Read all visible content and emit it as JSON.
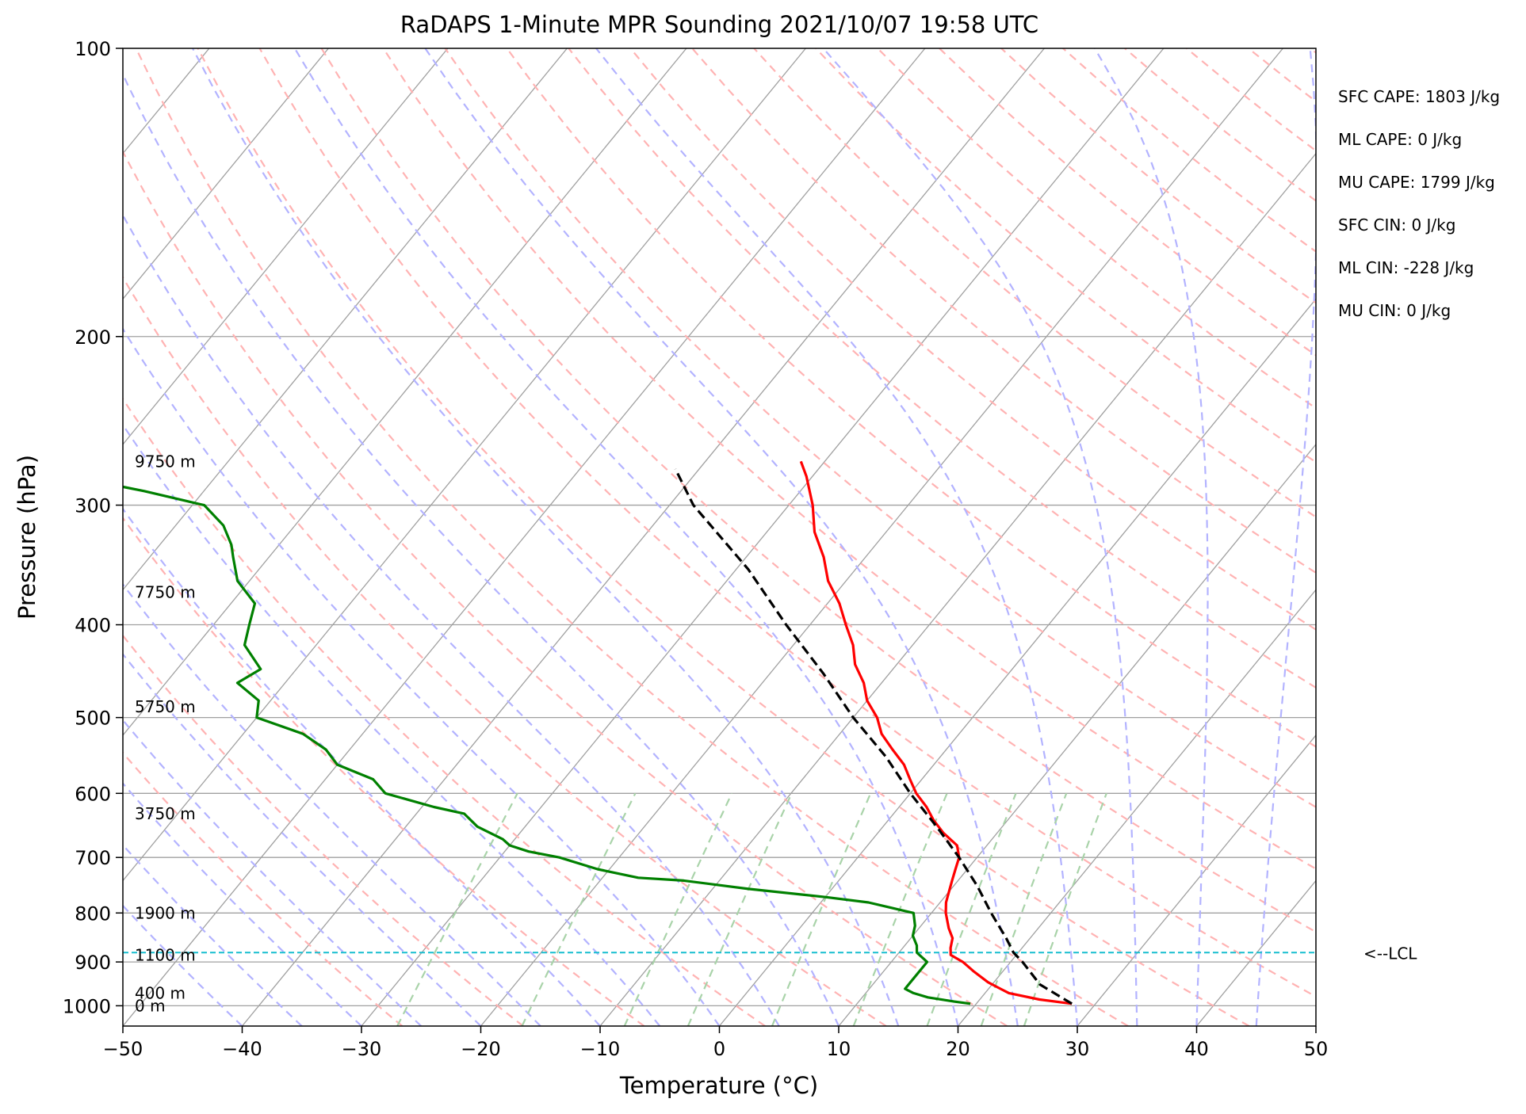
{
  "title": "RaDAPS 1-Minute MPR Sounding 2021/10/07 19:58 UTC",
  "stats": [
    "SFC CAPE: 1803 J/kg",
    "ML CAPE: 0 J/kg",
    "MU CAPE: 1799 J/kg",
    "SFC CIN: 0 J/kg",
    "ML CIN: -228 J/kg",
    "MU CIN: 0 J/kg"
  ],
  "lcl_label": "<--LCL",
  "colors": {
    "temperature": "#ff0000",
    "dewpoint": "#008000",
    "parcel": "#000000",
    "lcl": "#17becf",
    "dry_adiabat": "#ffb3b3",
    "moist_adiabat": "#b3b3ff",
    "mixing_ratio": "#a9d3a9",
    "isotherm": "#a0a0a0"
  },
  "chart_data": {
    "type": "skew-t log-p",
    "xlabel": "Temperature (°C)",
    "ylabel": "Pressure (hPa)",
    "xlim": [
      -50,
      50
    ],
    "ylim": [
      1050,
      100
    ],
    "x_ticks": [
      -50,
      -40,
      -30,
      -20,
      -10,
      0,
      10,
      20,
      30,
      40,
      50
    ],
    "x_tick_labels": [
      "−50",
      "−40",
      "−30",
      "−20",
      "−10",
      "0",
      "10",
      "20",
      "30",
      "40",
      "50"
    ],
    "y_ticks": [
      100,
      200,
      300,
      400,
      500,
      600,
      700,
      800,
      900,
      1000
    ],
    "y_tick_labels": [
      "100",
      "200",
      "300",
      "400",
      "500",
      "600",
      "700",
      "800",
      "900",
      "1000"
    ],
    "height_labels": [
      {
        "p": 1000,
        "text": "0 m"
      },
      {
        "p": 970,
        "text": "400 m"
      },
      {
        "p": 885,
        "text": "1100 m"
      },
      {
        "p": 800,
        "text": "1900 m"
      },
      {
        "p": 630,
        "text": "3750 m"
      },
      {
        "p": 487,
        "text": "5750 m"
      },
      {
        "p": 370,
        "text": "7750 m"
      },
      {
        "p": 270,
        "text": "9750 m"
      }
    ],
    "lcl_pressure": 880,
    "series": [
      {
        "name": "Temperature",
        "p": [
          995,
          985,
          970,
          960,
          945,
          920,
          900,
          885,
          870,
          850,
          830,
          800,
          780,
          760,
          740,
          720,
          700,
          680,
          660,
          640,
          620,
          600,
          580,
          560,
          540,
          520,
          500,
          480,
          460,
          440,
          420,
          400,
          380,
          360,
          340,
          320,
          300,
          280,
          270
        ],
        "t": [
          28,
          25,
          22,
          21,
          19.5,
          17.5,
          16,
          14.5,
          14,
          13.5,
          12.5,
          11.2,
          10.5,
          10,
          9.5,
          9,
          8.5,
          7.5,
          5.5,
          3.8,
          2.3,
          0.5,
          -1,
          -2.5,
          -4.5,
          -6.5,
          -8,
          -10,
          -11.5,
          -13.5,
          -15,
          -17,
          -19,
          -21.5,
          -23.5,
          -26,
          -28,
          -30.5,
          -32
        ]
      },
      {
        "name": "Dewpoint",
        "p": [
          995,
          990,
          980,
          970,
          960,
          945,
          930,
          900,
          880,
          865,
          845,
          825,
          800,
          780,
          770,
          755,
          740,
          735,
          720,
          700,
          690,
          680,
          670,
          650,
          630,
          620,
          600,
          580,
          560,
          540,
          520,
          500,
          480,
          460,
          445,
          420,
          400,
          380,
          360,
          340,
          330,
          315,
          300,
          295,
          290,
          283
        ],
        "t": [
          19.5,
          18,
          15.5,
          14,
          13,
          13,
          13,
          13,
          11.5,
          11,
          10,
          9.5,
          8.5,
          4,
          0,
          -7,
          -13,
          -17,
          -21,
          -25,
          -28,
          -30,
          -31,
          -34,
          -36,
          -39,
          -44,
          -46,
          -50,
          -52,
          -55,
          -60,
          -61,
          -64,
          -63,
          -66,
          -67,
          -68,
          -71,
          -73,
          -74,
          -76,
          -79,
          -82,
          -85,
          -90
        ]
      },
      {
        "name": "Parcel",
        "p": [
          995,
          950,
          900,
          880,
          850,
          800,
          750,
          700,
          650,
          600,
          550,
          500,
          450,
          400,
          350,
          300,
          275
        ],
        "t": [
          28,
          24,
          21,
          19.6,
          18,
          15,
          12,
          8.5,
          4.5,
          0,
          -4.5,
          -10,
          -15.5,
          -22,
          -29,
          -38,
          -42
        ]
      }
    ]
  }
}
